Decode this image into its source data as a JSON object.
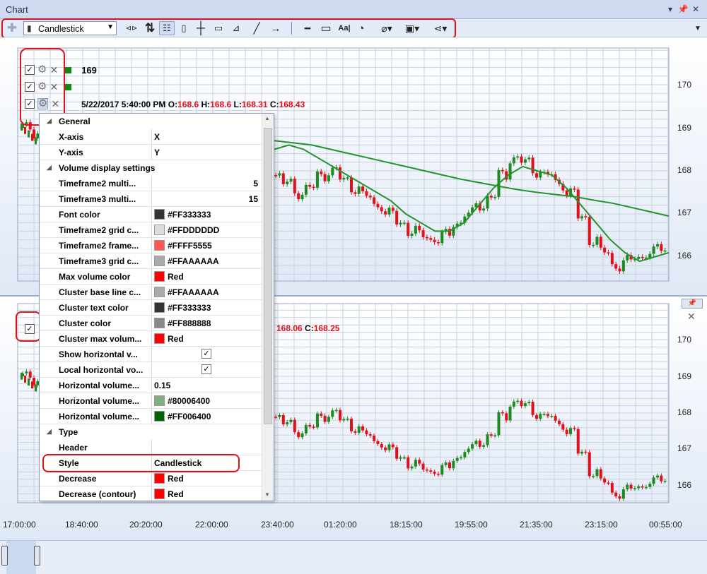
{
  "window": {
    "title": "Chart",
    "pin_icon": "pin-icon",
    "close_icon": "close-icon"
  },
  "toolbar": {
    "chart_type_value": "Candlestick",
    "icons": [
      "crosshair-plus-icon",
      "candlestick-icon",
      "scroll-icon",
      "sort-icon",
      "legend-icon",
      "page-icon",
      "crosshair-icon",
      "comment-icon",
      "ruler-icon",
      "line-icon",
      "arrow-icon",
      "hline-icon",
      "rectangle-icon",
      "text-icon",
      "gauge-icon",
      "eraser-icon",
      "save-icon",
      "share-icon"
    ],
    "text_tool_label": "Aa|"
  },
  "top_pane": {
    "legend_value": "169",
    "ohlc": {
      "date": "5/22/2017 5:40:00 PM",
      "o_label": "O:",
      "o": "168.6",
      "h_label": "H:",
      "h": "168.6",
      "l_label": "L:",
      "l": "168.31",
      "c_label": "C:",
      "c": "168.43"
    },
    "y_ticks": [
      "170",
      "169",
      "168",
      "167",
      "166"
    ]
  },
  "bottom_pane": {
    "ohlc_partial": {
      "l": "168.06",
      "c_label": "C:",
      "c": "168.25"
    },
    "y_ticks": [
      "170",
      "169",
      "168",
      "167",
      "166"
    ]
  },
  "x_ticks": [
    "17:00:00",
    "18:40:00",
    "20:20:00",
    "22:00:00",
    "23:40:00",
    "01:20:00",
    "18:15:00",
    "19:55:00",
    "21:35:00",
    "23:15:00",
    "00:55:00"
  ],
  "property_grid": {
    "rows": [
      {
        "kind": "cat",
        "name": "General"
      },
      {
        "kind": "text",
        "name": "X-axis",
        "value": "X"
      },
      {
        "kind": "text",
        "name": "Y-axis",
        "value": "Y"
      },
      {
        "kind": "cat",
        "name": "Volume display settings"
      },
      {
        "kind": "num",
        "name": "Timeframe2 multi...",
        "value": "5"
      },
      {
        "kind": "num",
        "name": "Timeframe3 multi...",
        "value": "15"
      },
      {
        "kind": "color",
        "name": "Font color",
        "value": "#FF333333",
        "color": "#333333"
      },
      {
        "kind": "color",
        "name": "Timeframe2 grid c...",
        "value": "#FFDDDDDD",
        "color": "#DDDDDD"
      },
      {
        "kind": "color",
        "name": "Timeframe2 frame...",
        "value": "#FFFF5555",
        "color": "#FF5555"
      },
      {
        "kind": "color",
        "name": "Timeframe3 grid c...",
        "value": "#FFAAAAAA",
        "color": "#AAAAAA"
      },
      {
        "kind": "color",
        "name": "Max volume color",
        "value": "Red",
        "color": "#FF0000"
      },
      {
        "kind": "color",
        "name": "Cluster base line c...",
        "value": "#FFAAAAAA",
        "color": "#AAAAAA"
      },
      {
        "kind": "color",
        "name": "Cluster text color",
        "value": "#FF333333",
        "color": "#333333"
      },
      {
        "kind": "color",
        "name": "Cluster color",
        "value": "#FF888888",
        "color": "#888888"
      },
      {
        "kind": "color",
        "name": "Cluster max volum...",
        "value": "Red",
        "color": "#FF0000"
      },
      {
        "kind": "check",
        "name": "Show horizontal v...",
        "value": "✓"
      },
      {
        "kind": "check",
        "name": "Local horizontal vo...",
        "value": "✓"
      },
      {
        "kind": "text",
        "name": "Horizontal volume...",
        "value": "0.15"
      },
      {
        "kind": "color",
        "name": "Horizontal volume...",
        "value": "#80006400",
        "color": "#80B080"
      },
      {
        "kind": "color",
        "name": "Horizontal volume...",
        "value": "#FF006400",
        "color": "#006400"
      },
      {
        "kind": "cat",
        "name": "Type"
      },
      {
        "kind": "text",
        "name": "Header",
        "value": ""
      },
      {
        "kind": "text",
        "name": "Style",
        "value": "Candlestick"
      },
      {
        "kind": "color",
        "name": "Decrease",
        "value": "Red",
        "color": "#FF0000"
      },
      {
        "kind": "color",
        "name": "Decrease (contour)",
        "value": "Red",
        "color": "#FF0000"
      }
    ]
  },
  "chart_data": {
    "type": "candlestick",
    "series_close": [
      169.0,
      168.9,
      168.6,
      168.4,
      168.0,
      168.3,
      168.1,
      168.2,
      168.4,
      168.5,
      168.3,
      168.1,
      167.8,
      167.9,
      168.0,
      168.2,
      168.4,
      168.6,
      168.7,
      168.5,
      168.3,
      168.1,
      167.9,
      167.7,
      167.5,
      167.6,
      167.9,
      168.0,
      167.8,
      167.6,
      167.4,
      167.2,
      167.0,
      166.8,
      166.6,
      166.5,
      166.4,
      166.5,
      166.8,
      167.0,
      167.2,
      167.4,
      167.9,
      168.3,
      168.2,
      168.0,
      167.9,
      167.7,
      167.5,
      166.9,
      166.4,
      166.1,
      165.8,
      165.9,
      166.0,
      166.1,
      166.2
    ],
    "ma_long": [
      169.6,
      169.4,
      169.2,
      169.0,
      168.9,
      168.85,
      168.8,
      168.75,
      168.7,
      168.65,
      168.6,
      168.5,
      168.4,
      168.3,
      168.2,
      168.1,
      168.0,
      167.9,
      167.8,
      167.72,
      167.64,
      167.56,
      167.5,
      167.45,
      167.4,
      167.32,
      167.25,
      167.15,
      167.05,
      166.95
    ],
    "ma_short": [
      169.0,
      168.7,
      168.4,
      168.2,
      168.1,
      168.3,
      168.5,
      168.6,
      168.5,
      168.3,
      168.1,
      167.9,
      167.7,
      167.5,
      167.3,
      167.0,
      166.8,
      166.6,
      166.6,
      166.8,
      167.2,
      167.6,
      167.9,
      168.1,
      168.0,
      167.9,
      167.6,
      167.2,
      166.8,
      166.4,
      166.1,
      165.9,
      166.0,
      166.1
    ],
    "y_range_top": [
      165.5,
      170.5
    ],
    "y_range_bottom": [
      165.5,
      170.5
    ],
    "colors": {
      "up": "#1f8a1f",
      "down": "#e0111b",
      "ma": "#23932b"
    }
  }
}
